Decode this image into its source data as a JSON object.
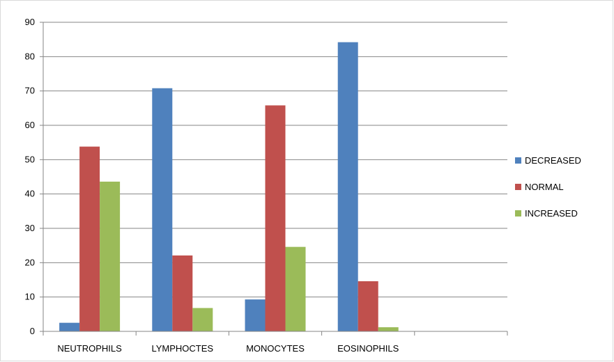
{
  "chart_data": {
    "type": "bar",
    "title": "",
    "xlabel": "",
    "ylabel": "",
    "categories": [
      "NEUTROPHILS",
      "LYMPHOCTES",
      "MONOCYTES",
      "EOSINOPHILS",
      ""
    ],
    "series": [
      {
        "name": "DECREASED",
        "color": "#4f81bd",
        "values": [
          2.5,
          70.8,
          9.3,
          84.2,
          null
        ]
      },
      {
        "name": "NORMAL",
        "color": "#c0504d",
        "values": [
          53.8,
          22.1,
          65.8,
          14.6,
          null
        ]
      },
      {
        "name": "INCREASED",
        "color": "#9bbb59",
        "values": [
          43.6,
          6.8,
          24.6,
          1.2,
          null
        ]
      }
    ],
    "ylim": [
      0,
      90
    ],
    "yticks": [
      0,
      10,
      20,
      30,
      40,
      50,
      60,
      70,
      80,
      90
    ],
    "grid": true,
    "legend": "right"
  }
}
